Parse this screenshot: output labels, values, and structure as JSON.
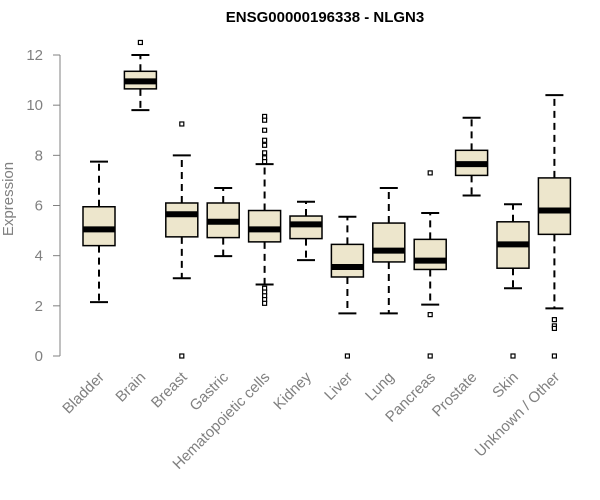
{
  "chart_data": {
    "type": "boxplot",
    "title": "ENSG00000196338 - NLGN3",
    "xlabel": "",
    "ylabel": "Expression",
    "ylim": [
      0,
      12
    ],
    "yticks": [
      0,
      2,
      4,
      6,
      8,
      10,
      12
    ],
    "grid": false,
    "colors": {
      "box_fill": "#ede6cc",
      "stroke": "#000000",
      "axis_text": "#808080"
    },
    "categories": [
      "Bladder",
      "Brain",
      "Breast",
      "Gastric",
      "Hematopoietic cells",
      "Kidney",
      "Liver",
      "Lung",
      "Pancreas",
      "Prostate",
      "Skin",
      "Unknown / Other"
    ],
    "boxes": [
      {
        "min": 2.15,
        "q1": 4.4,
        "median": 5.05,
        "q3": 5.95,
        "max": 7.75,
        "outliers": []
      },
      {
        "min": 9.8,
        "q1": 10.65,
        "median": 10.95,
        "q3": 11.35,
        "max": 12.0,
        "outliers": [
          12.5
        ]
      },
      {
        "min": 3.1,
        "q1": 4.75,
        "median": 5.65,
        "q3": 6.1,
        "max": 8.0,
        "outliers": [
          9.25,
          0.0
        ]
      },
      {
        "min": 3.98,
        "q1": 4.72,
        "median": 5.35,
        "q3": 6.1,
        "max": 6.7,
        "outliers": []
      },
      {
        "min": 2.85,
        "q1": 4.55,
        "median": 5.05,
        "q3": 5.8,
        "max": 7.65,
        "outliers": [
          9.55,
          9.4,
          9.0,
          8.6,
          8.4,
          8.1,
          7.9,
          7.75,
          2.7,
          2.55,
          2.4,
          2.25,
          2.1
        ]
      },
      {
        "min": 3.82,
        "q1": 4.68,
        "median": 5.25,
        "q3": 5.58,
        "max": 6.15,
        "outliers": []
      },
      {
        "min": 1.7,
        "q1": 3.15,
        "median": 3.55,
        "q3": 4.45,
        "max": 5.55,
        "outliers": [
          0.0
        ]
      },
      {
        "min": 1.7,
        "q1": 3.75,
        "median": 4.2,
        "q3": 5.3,
        "max": 6.7,
        "outliers": []
      },
      {
        "min": 2.05,
        "q1": 3.45,
        "median": 3.8,
        "q3": 4.65,
        "max": 5.7,
        "outliers": [
          7.3,
          1.65,
          0.0
        ]
      },
      {
        "min": 6.4,
        "q1": 7.2,
        "median": 7.65,
        "q3": 8.2,
        "max": 9.5,
        "outliers": []
      },
      {
        "min": 2.7,
        "q1": 3.5,
        "median": 4.45,
        "q3": 5.35,
        "max": 6.05,
        "outliers": [
          0.0
        ]
      },
      {
        "min": 1.9,
        "q1": 4.85,
        "median": 5.8,
        "q3": 7.1,
        "max": 10.4,
        "outliers": [
          1.45,
          1.2,
          1.1,
          0.0
        ]
      }
    ]
  }
}
